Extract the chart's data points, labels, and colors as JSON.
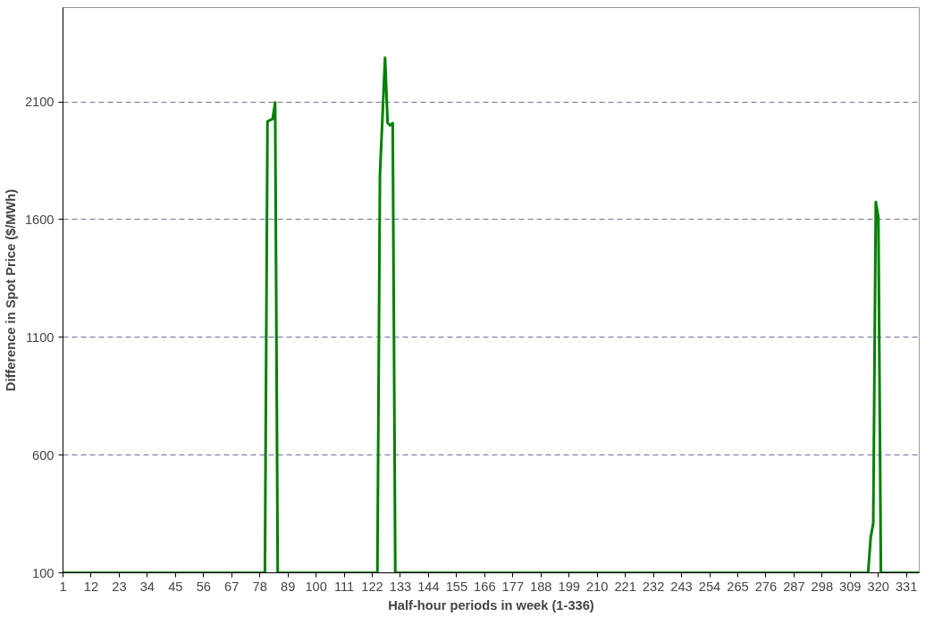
{
  "chart_data": {
    "type": "line",
    "xlabel": "Half-hour periods in week (1-336)",
    "ylabel": "Difference in Spot Price ($/MWh)",
    "x": [
      1,
      80,
      81,
      82,
      83,
      84,
      85,
      124,
      125,
      126,
      127,
      128,
      129,
      130,
      131,
      316,
      317,
      318,
      319,
      320,
      321,
      336
    ],
    "series": [
      {
        "color": "#008000",
        "values": [
          100,
          100,
          2017,
          2022,
          2027,
          2097,
          100,
          100,
          1790,
          2040,
          2287,
          2010,
          2000,
          2010,
          100,
          100,
          250,
          310,
          1674,
          1610,
          100,
          100
        ]
      }
    ],
    "xlim": [
      1,
      336
    ],
    "xticks": [
      1,
      12,
      23,
      34,
      45,
      56,
      67,
      78,
      89,
      100,
      111,
      122,
      133,
      144,
      155,
      166,
      177,
      188,
      199,
      210,
      221,
      232,
      243,
      254,
      265,
      276,
      287,
      298,
      309,
      320,
      331
    ],
    "ylim": [
      100,
      2500
    ],
    "yticks": [
      100,
      600,
      1100,
      1600,
      2100
    ],
    "grid": "y",
    "marker": "none",
    "line_style": "solid"
  }
}
